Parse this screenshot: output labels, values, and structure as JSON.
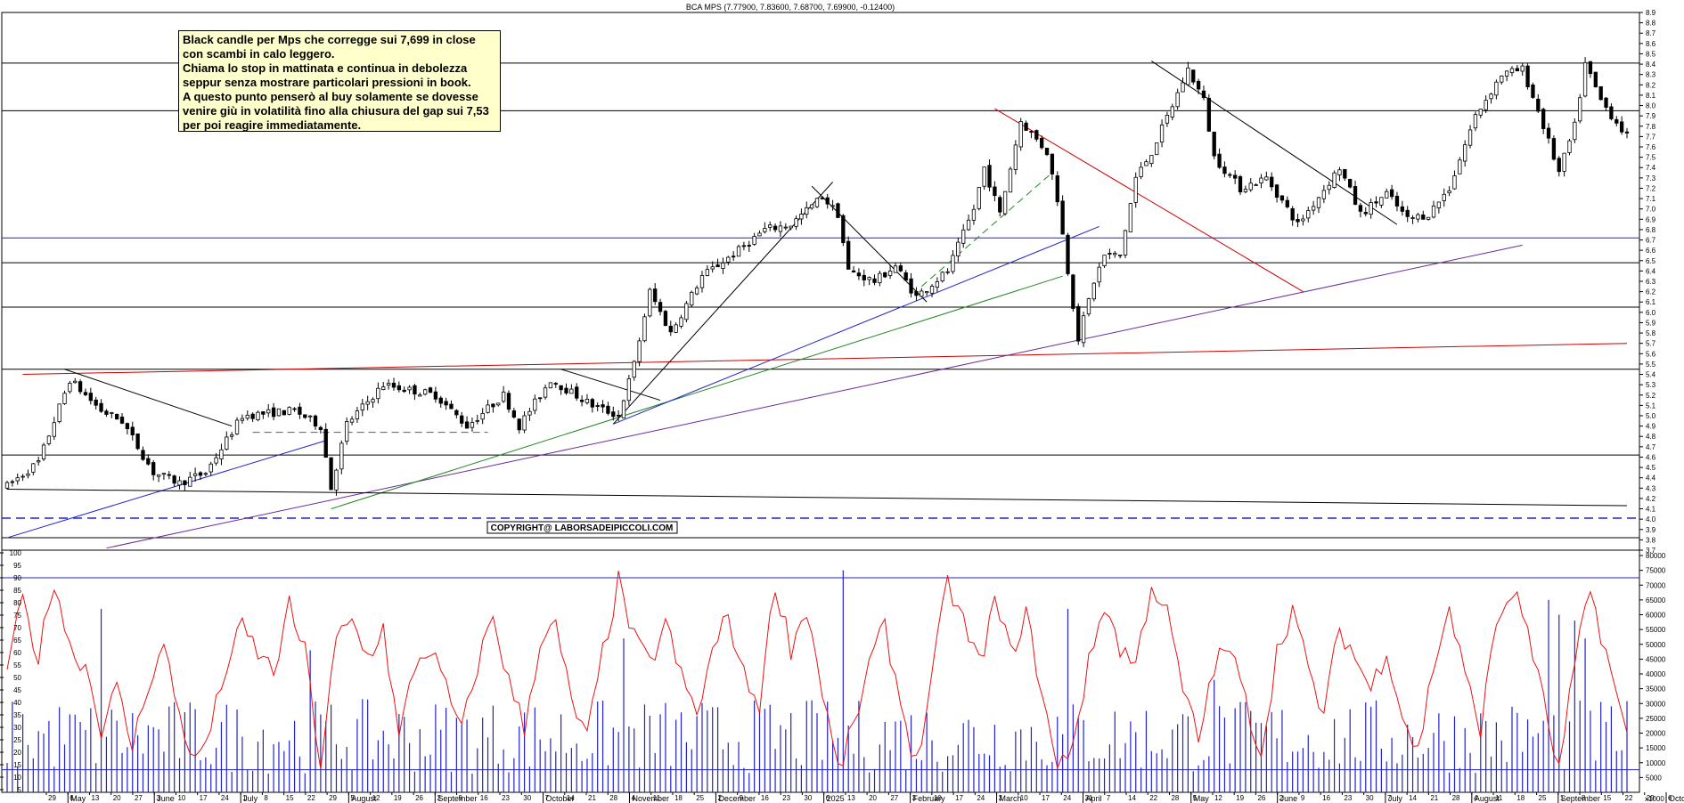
{
  "chart_data": {
    "type": "candlestick",
    "title": "BCA MPS (7.77900, 7.83600, 7.68700, 7.69900, -0.12400)",
    "annotation_lines": [
      "Black candle per Mps che corregge sui 7,699 in close",
      "con scambi in calo leggero.",
      "Chiama lo stop in mattinata e continua in debolezza",
      "seppur senza mostrare particolari pressioni in book.",
      "A questo punto penserò al buy solamente se dovesse",
      "venire giù in volatilità fino alla chiusura del gap sui 7,53",
      "per poi reagire immediatamente."
    ],
    "copyright": "COPYRIGHT@ LABORSADEIPICCOLI.COM",
    "price_axis": {
      "ylim": [
        3.7,
        8.9
      ],
      "ticks": [
        "3.7",
        "3.8",
        "3.9",
        "4.0",
        "4.1",
        "4.2",
        "4.3",
        "4.4",
        "4.5",
        "4.6",
        "4.7",
        "4.8",
        "4.9",
        "5.0",
        "5.1",
        "5.2",
        "5.3",
        "5.4",
        "5.5",
        "5.6",
        "5.7",
        "5.8",
        "5.9",
        "6.0",
        "6.1",
        "6.2",
        "6.3",
        "6.4",
        "6.5",
        "6.6",
        "6.7",
        "6.8",
        "6.9",
        "7.0",
        "7.1",
        "7.2",
        "7.3",
        "7.4",
        "7.5",
        "7.6",
        "7.7",
        "7.8",
        "7.9",
        "8.0",
        "8.1",
        "8.2",
        "8.3",
        "8.4",
        "8.5",
        "8.6",
        "8.7",
        "8.8",
        "8.9"
      ]
    },
    "oscillator_axis": {
      "ylim": [
        5,
        100
      ],
      "ticks": [
        "5",
        "10",
        "15",
        "20",
        "25",
        "30",
        "35",
        "40",
        "45",
        "50",
        "55",
        "60",
        "65",
        "70",
        "75",
        "80",
        "85",
        "90",
        "95",
        "100"
      ],
      "levels": [
        13,
        90
      ]
    },
    "volume_axis": {
      "ylim": [
        0,
        80000
      ],
      "ticks": [
        "5000",
        "10000",
        "15000",
        "20000",
        "25000",
        "30000",
        "35000",
        "40000",
        "45000",
        "50000",
        "55000",
        "60000",
        "65000",
        "70000",
        "75000",
        "80000"
      ],
      "unit_label": "x1000"
    },
    "horizontal_levels": [
      {
        "price": 8.41,
        "color": "#000000"
      },
      {
        "price": 7.95,
        "color": "#000000"
      },
      {
        "price": 6.72,
        "color": "#2222cc"
      },
      {
        "price": 6.48,
        "color": "#000000"
      },
      {
        "price": 6.05,
        "color": "#000000"
      },
      {
        "price": 5.45,
        "color": "#000000"
      },
      {
        "price": 4.62,
        "color": "#000000"
      },
      {
        "price": 3.82,
        "color": "#000000"
      },
      {
        "price": 4.01,
        "color": "#2222ee",
        "dashed": true
      }
    ],
    "trendlines": [
      {
        "color": "#cc0000",
        "from": [
          3,
          5.4
        ],
        "to": [
          310,
          5.7
        ]
      },
      {
        "color": "#2222cc",
        "from": [
          0,
          3.82
        ],
        "to": [
          61,
          4.76
        ]
      },
      {
        "color": "#6a2a9a",
        "from": [
          19,
          3.72
        ],
        "to": [
          290,
          6.65
        ]
      },
      {
        "color": "#228822",
        "from": [
          62,
          4.1
        ],
        "to": [
          202,
          6.35
        ]
      },
      {
        "color": "#2222cc",
        "from": [
          116,
          4.92
        ],
        "to": [
          209,
          6.83
        ]
      },
      {
        "color": "#000000",
        "from": [
          116,
          4.92
        ],
        "to": [
          158,
          7.26
        ]
      },
      {
        "color": "#000000",
        "from": [
          11,
          5.45
        ],
        "to": [
          43,
          4.9
        ]
      },
      {
        "color": "#000000",
        "from": [
          106,
          5.45
        ],
        "to": [
          125,
          5.15
        ]
      },
      {
        "color": "#000000",
        "from": [
          154,
          7.22
        ],
        "to": [
          176,
          6.1
        ]
      },
      {
        "color": "#228822",
        "from": [
          175,
          6.25
        ],
        "to": [
          200,
          7.35
        ],
        "dashed": true
      },
      {
        "color": "#cc0000",
        "from": [
          189,
          7.97
        ],
        "to": [
          248,
          6.2
        ]
      },
      {
        "color": "#000000",
        "from": [
          219,
          8.43
        ],
        "to": [
          266,
          6.85
        ]
      },
      {
        "color": "#000000",
        "from": [
          0,
          4.29
        ],
        "to": [
          310,
          4.13
        ]
      },
      {
        "color": "#228822",
        "from": [
          47,
          4.84
        ],
        "to": [
          92,
          4.84
        ],
        "dashed": true
      }
    ],
    "time_axis": {
      "day_labels": [
        "29",
        "6",
        "13",
        "20",
        "27",
        "3",
        "10",
        "17",
        "24",
        "1",
        "8",
        "15",
        "22",
        "29",
        "5",
        "12",
        "19",
        "26",
        "2",
        "9",
        "16",
        "23",
        "30",
        "7",
        "14",
        "21",
        "28",
        "4",
        "11",
        "18",
        "25",
        "2",
        "9",
        "16",
        "23",
        "30",
        "6",
        "13",
        "20",
        "27",
        "3",
        "10",
        "17",
        "24",
        "3",
        "10",
        "17",
        "24",
        "31",
        "7",
        "14",
        "22",
        "28",
        "5",
        "12",
        "19",
        "26",
        "2",
        "9",
        "16",
        "23",
        "30",
        "7",
        "14",
        "21",
        "28",
        "4",
        "11",
        "18",
        "25",
        "1",
        "8",
        "15",
        "22",
        "29",
        "6"
      ],
      "months": [
        {
          "label": "May",
          "day_index": 1
        },
        {
          "label": "June",
          "day_index": 5
        },
        {
          "label": "July",
          "day_index": 9
        },
        {
          "label": "August",
          "day_index": 14
        },
        {
          "label": "September",
          "day_index": 18
        },
        {
          "label": "October",
          "day_index": 23
        },
        {
          "label": "November",
          "day_index": 27
        },
        {
          "label": "December",
          "day_index": 31
        },
        {
          "label": "2025",
          "day_index": 36
        },
        {
          "label": "February",
          "day_index": 40
        },
        {
          "label": "March",
          "day_index": 44
        },
        {
          "label": "April",
          "day_index": 48
        },
        {
          "label": "May",
          "day_index": 53
        },
        {
          "label": "June",
          "day_index": 57
        },
        {
          "label": "July",
          "day_index": 62
        },
        {
          "label": "August",
          "day_index": 66
        },
        {
          "label": "September",
          "day_index": 70
        },
        {
          "label": "October",
          "day_index": 75
        }
      ]
    },
    "price_anchors": [
      [
        0,
        4.32
      ],
      [
        6,
        4.55
      ],
      [
        12,
        5.35
      ],
      [
        18,
        5.05
      ],
      [
        22,
        4.95
      ],
      [
        28,
        4.45
      ],
      [
        33,
        4.35
      ],
      [
        38,
        4.45
      ],
      [
        45,
        5.0
      ],
      [
        55,
        5.05
      ],
      [
        60,
        4.9
      ],
      [
        62,
        4.3
      ],
      [
        65,
        4.92
      ],
      [
        72,
        5.3
      ],
      [
        82,
        5.2
      ],
      [
        88,
        4.9
      ],
      [
        95,
        5.2
      ],
      [
        98,
        4.9
      ],
      [
        104,
        5.35
      ],
      [
        112,
        5.1
      ],
      [
        117,
        5.0
      ],
      [
        120,
        5.5
      ],
      [
        123,
        6.2
      ],
      [
        127,
        5.8
      ],
      [
        133,
        6.35
      ],
      [
        140,
        6.6
      ],
      [
        145,
        6.8
      ],
      [
        150,
        6.85
      ],
      [
        156,
        7.12
      ],
      [
        159,
        6.95
      ],
      [
        161,
        6.4
      ],
      [
        166,
        6.3
      ],
      [
        170,
        6.45
      ],
      [
        174,
        6.15
      ],
      [
        180,
        6.4
      ],
      [
        185,
        7.0
      ],
      [
        187,
        7.4
      ],
      [
        190,
        6.95
      ],
      [
        194,
        7.85
      ],
      [
        199,
        7.55
      ],
      [
        201,
        7.1
      ],
      [
        203,
        6.4
      ],
      [
        205,
        5.75
      ],
      [
        208,
        6.3
      ],
      [
        210,
        6.55
      ],
      [
        213,
        6.55
      ],
      [
        216,
        7.3
      ],
      [
        219,
        7.55
      ],
      [
        223,
        8.0
      ],
      [
        226,
        8.35
      ],
      [
        229,
        8.05
      ],
      [
        231,
        7.5
      ],
      [
        236,
        7.2
      ],
      [
        241,
        7.3
      ],
      [
        247,
        6.85
      ],
      [
        250,
        7.05
      ],
      [
        255,
        7.4
      ],
      [
        259,
        6.95
      ],
      [
        264,
        7.15
      ],
      [
        268,
        6.9
      ],
      [
        272,
        6.95
      ],
      [
        276,
        7.2
      ],
      [
        281,
        7.9
      ],
      [
        286,
        8.3
      ],
      [
        290,
        8.35
      ],
      [
        293,
        7.95
      ],
      [
        297,
        7.35
      ],
      [
        300,
        7.8
      ],
      [
        302,
        8.4
      ],
      [
        305,
        8.05
      ],
      [
        310,
        7.7
      ]
    ],
    "oscillator_anchors": [
      [
        0,
        55
      ],
      [
        3,
        80
      ],
      [
        6,
        58
      ],
      [
        9,
        90
      ],
      [
        12,
        62
      ],
      [
        15,
        55
      ],
      [
        18,
        30
      ],
      [
        21,
        45
      ],
      [
        24,
        22
      ],
      [
        27,
        48
      ],
      [
        30,
        62
      ],
      [
        33,
        35
      ],
      [
        36,
        15
      ],
      [
        39,
        30
      ],
      [
        42,
        55
      ],
      [
        45,
        70
      ],
      [
        48,
        60
      ],
      [
        51,
        52
      ],
      [
        54,
        78
      ],
      [
        57,
        60
      ],
      [
        60,
        15
      ],
      [
        63,
        65
      ],
      [
        66,
        72
      ],
      [
        69,
        58
      ],
      [
        72,
        70
      ],
      [
        75,
        25
      ],
      [
        78,
        55
      ],
      [
        81,
        62
      ],
      [
        84,
        45
      ],
      [
        87,
        28
      ],
      [
        90,
        55
      ],
      [
        93,
        75
      ],
      [
        96,
        48
      ],
      [
        99,
        30
      ],
      [
        102,
        65
      ],
      [
        105,
        70
      ],
      [
        108,
        40
      ],
      [
        111,
        25
      ],
      [
        114,
        60
      ],
      [
        117,
        88
      ],
      [
        120,
        65
      ],
      [
        123,
        55
      ],
      [
        126,
        72
      ],
      [
        129,
        50
      ],
      [
        132,
        35
      ],
      [
        135,
        60
      ],
      [
        138,
        75
      ],
      [
        141,
        50
      ],
      [
        144,
        40
      ],
      [
        147,
        88
      ],
      [
        150,
        62
      ],
      [
        153,
        78
      ],
      [
        156,
        45
      ],
      [
        159,
        12
      ],
      [
        162,
        30
      ],
      [
        165,
        55
      ],
      [
        168,
        70
      ],
      [
        171,
        40
      ],
      [
        174,
        15
      ],
      [
        177,
        50
      ],
      [
        180,
        88
      ],
      [
        183,
        72
      ],
      [
        186,
        55
      ],
      [
        189,
        80
      ],
      [
        192,
        60
      ],
      [
        195,
        75
      ],
      [
        198,
        45
      ],
      [
        201,
        12
      ],
      [
        204,
        25
      ],
      [
        207,
        55
      ],
      [
        210,
        80
      ],
      [
        213,
        62
      ],
      [
        216,
        55
      ],
      [
        219,
        88
      ],
      [
        222,
        75
      ],
      [
        225,
        45
      ],
      [
        228,
        25
      ],
      [
        231,
        55
      ],
      [
        234,
        62
      ],
      [
        237,
        40
      ],
      [
        240,
        20
      ],
      [
        243,
        60
      ],
      [
        246,
        78
      ],
      [
        249,
        52
      ],
      [
        252,
        35
      ],
      [
        255,
        70
      ],
      [
        258,
        58
      ],
      [
        261,
        45
      ],
      [
        264,
        62
      ],
      [
        267,
        35
      ],
      [
        270,
        20
      ],
      [
        273,
        55
      ],
      [
        276,
        78
      ],
      [
        279,
        50
      ],
      [
        282,
        30
      ],
      [
        285,
        72
      ],
      [
        288,
        85
      ],
      [
        291,
        70
      ],
      [
        294,
        40
      ],
      [
        297,
        12
      ],
      [
        300,
        55
      ],
      [
        303,
        85
      ],
      [
        306,
        60
      ],
      [
        310,
        25
      ]
    ],
    "volume_spikes": [
      [
        18,
        62000
      ],
      [
        58,
        48000
      ],
      [
        118,
        52000
      ],
      [
        160,
        75000
      ],
      [
        203,
        62000
      ],
      [
        231,
        38000
      ],
      [
        295,
        65000
      ],
      [
        297,
        60000
      ],
      [
        300,
        58000
      ],
      [
        302,
        52000
      ]
    ],
    "volume_base": 18000,
    "volume_seed": 7,
    "bar_count": 311,
    "style": {
      "candle_color": "#000000",
      "oscillator_color": "#ee1111",
      "volume_color": "#2222cc",
      "level_line_color": "#2222cc"
    }
  }
}
